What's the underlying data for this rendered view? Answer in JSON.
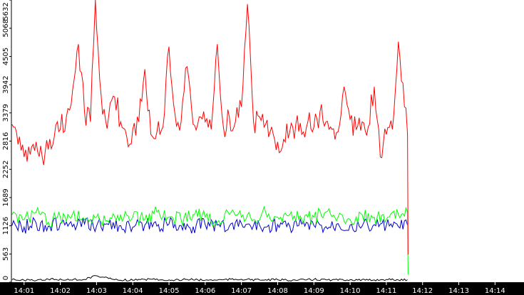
{
  "chart_data": {
    "type": "line",
    "title": "",
    "xlabel": "",
    "ylabel": "",
    "grid": false,
    "legend": "none",
    "ylim": [
      0,
      5632
    ],
    "y_ticks": [
      0,
      563,
      1126,
      1689,
      2252,
      2816,
      3379,
      3942,
      4505,
      5068,
      5632
    ],
    "y_tick_labels": [
      "0",
      "563",
      "1126",
      "1689",
      "2252",
      "2816",
      "3379",
      "3942",
      "4505",
      "5068",
      "5632"
    ],
    "x_ticks": [
      "14:01",
      "14:02",
      "14:03",
      "14:04",
      "14:05",
      "14:06",
      "14:07",
      "14:08",
      "14:09",
      "14:10",
      "14:11",
      "14:12",
      "14:13",
      "14:14"
    ],
    "x_range": [
      "14:00:39",
      "14:14:48"
    ],
    "colors": {
      "red": "#ff0000",
      "green": "#00ff00",
      "blue": "#0000cc",
      "black": "#000000",
      "axis_band": "#000000"
    },
    "series": [
      {
        "color": "#ff0000",
        "x": [
          "14:00:40",
          "14:00:50",
          "14:01:00",
          "14:01:10",
          "14:01:20",
          "14:01:30",
          "14:01:40",
          "14:01:50",
          "14:02:00",
          "14:02:10",
          "14:02:18",
          "14:02:30",
          "14:02:40",
          "14:02:50",
          "14:02:58",
          "14:03:10",
          "14:03:20",
          "14:03:30",
          "14:03:40",
          "14:03:50",
          "14:04:00",
          "14:04:10",
          "14:04:20",
          "14:04:30",
          "14:04:40",
          "14:04:50",
          "14:05:00",
          "14:05:10",
          "14:05:20",
          "14:05:30",
          "14:05:40",
          "14:05:50",
          "14:06:00",
          "14:06:10",
          "14:06:20",
          "14:06:30",
          "14:06:40",
          "14:06:50",
          "14:07:00",
          "14:07:10",
          "14:07:20",
          "14:07:30",
          "14:07:40",
          "14:07:50",
          "14:08:00",
          "14:08:10",
          "14:08:20",
          "14:08:30",
          "14:08:40",
          "14:08:50",
          "14:09:00",
          "14:09:10",
          "14:09:20",
          "14:09:30",
          "14:09:40",
          "14:09:50",
          "14:10:00",
          "14:10:10",
          "14:10:20",
          "14:10:30",
          "14:10:40",
          "14:10:50",
          "14:11:00",
          "14:11:10",
          "14:11:20",
          "14:11:30",
          "14:11:35",
          "14:11:36"
        ],
        "values": [
          3150,
          2750,
          2500,
          2550,
          2800,
          2500,
          2650,
          2900,
          3050,
          3300,
          3550,
          4750,
          3400,
          3200,
          5632,
          3350,
          3300,
          3700,
          3200,
          2900,
          3050,
          3200,
          4250,
          2950,
          3000,
          3100,
          4700,
          3350,
          3200,
          4300,
          3150,
          3300,
          3200,
          3050,
          4750,
          3100,
          3300,
          3200,
          3500,
          5550,
          3200,
          3300,
          3150,
          3100,
          2800,
          2850,
          3000,
          3150,
          2950,
          3200,
          3100,
          3400,
          3200,
          3050,
          3000,
          3900,
          3250,
          3050,
          3200,
          3100,
          3900,
          2500,
          2950,
          3050,
          4800,
          3500,
          2950,
          550
        ]
      },
      {
        "color": "#00ff00",
        "x": [
          "14:00:40",
          "14:01:00",
          "14:01:20",
          "14:01:40",
          "14:02:00",
          "14:02:20",
          "14:02:40",
          "14:03:00",
          "14:03:20",
          "14:03:40",
          "14:04:00",
          "14:04:20",
          "14:04:40",
          "14:05:00",
          "14:05:20",
          "14:05:40",
          "14:06:00",
          "14:06:20",
          "14:06:40",
          "14:07:00",
          "14:07:20",
          "14:07:40",
          "14:08:00",
          "14:08:20",
          "14:08:40",
          "14:09:00",
          "14:09:20",
          "14:09:40",
          "14:10:00",
          "14:10:20",
          "14:10:40",
          "14:11:00",
          "14:11:20",
          "14:11:35",
          "14:11:36"
        ],
        "values": [
          1350,
          1250,
          1400,
          1200,
          1300,
          1350,
          1250,
          1300,
          1200,
          1350,
          1300,
          1250,
          1400,
          1300,
          1250,
          1350,
          1300,
          1200,
          1350,
          1300,
          1250,
          1400,
          1300,
          1350,
          1250,
          1300,
          1400,
          1300,
          1250,
          1350,
          1300,
          1250,
          1350,
          1400,
          150
        ]
      },
      {
        "color": "#0000cc",
        "x": [
          "14:00:40",
          "14:01:00",
          "14:01:20",
          "14:01:40",
          "14:02:00",
          "14:02:20",
          "14:02:40",
          "14:03:00",
          "14:03:20",
          "14:03:40",
          "14:04:00",
          "14:04:20",
          "14:04:40",
          "14:05:00",
          "14:05:20",
          "14:05:40",
          "14:06:00",
          "14:06:20",
          "14:06:40",
          "14:07:00",
          "14:07:20",
          "14:07:40",
          "14:08:00",
          "14:08:20",
          "14:08:40",
          "14:09:00",
          "14:09:20",
          "14:09:40",
          "14:10:00",
          "14:10:20",
          "14:10:40",
          "14:11:00",
          "14:11:20",
          "14:11:35"
        ],
        "values": [
          1130,
          1100,
          1180,
          1120,
          1170,
          1110,
          1160,
          1120,
          1150,
          1130,
          1100,
          1140,
          1120,
          1160,
          1130,
          1110,
          1150,
          1140,
          1120,
          1170,
          1130,
          1100,
          1150,
          1120,
          1160,
          1130,
          1110,
          1170,
          1140,
          1120,
          1150,
          1130,
          1110,
          1140
        ]
      },
      {
        "color": "#000000",
        "x": [
          "14:00:40",
          "14:01:10",
          "14:01:40",
          "14:02:10",
          "14:02:40",
          "14:02:58",
          "14:03:30",
          "14:04:00",
          "14:04:30",
          "14:05:00",
          "14:05:30",
          "14:06:00",
          "14:06:30",
          "14:07:00",
          "14:07:30",
          "14:08:00",
          "14:08:30",
          "14:09:00",
          "14:09:30",
          "14:10:00",
          "14:10:30",
          "14:11:00",
          "14:11:20",
          "14:11:35"
        ],
        "values": [
          50,
          40,
          60,
          45,
          55,
          130,
          50,
          40,
          60,
          45,
          55,
          40,
          50,
          60,
          45,
          50,
          40,
          55,
          45,
          50,
          40,
          55,
          45,
          50
        ]
      }
    ]
  }
}
